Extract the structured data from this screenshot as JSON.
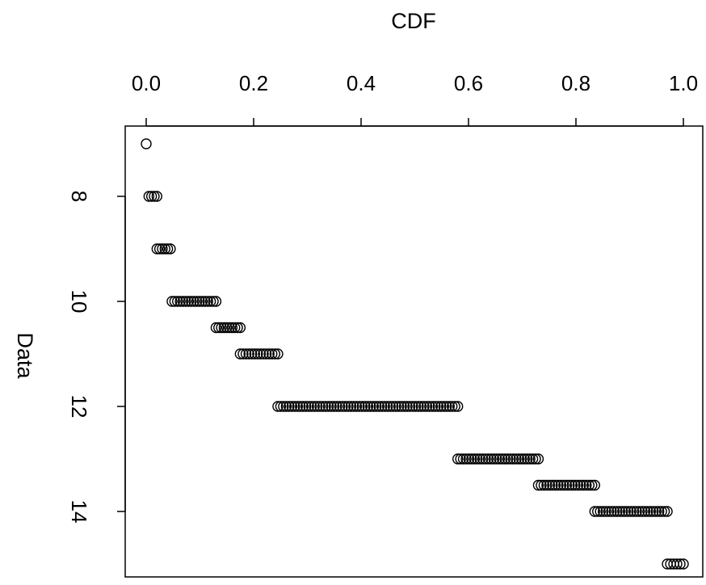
{
  "chart_data": {
    "type": "scatter",
    "title": "",
    "xlabel": "CDF",
    "ylabel": "Data",
    "x_axis_position": "top",
    "y_axis_reversed": true,
    "xlim": [
      0,
      1
    ],
    "ylim": [
      7,
      15
    ],
    "x_ticks": [
      0.0,
      0.2,
      0.4,
      0.6,
      0.8,
      1.0
    ],
    "x_tick_labels": [
      "0.0",
      "0.2",
      "0.4",
      "0.6",
      "0.8",
      "1.0"
    ],
    "y_ticks": [
      8,
      10,
      12,
      14
    ],
    "y_tick_labels": [
      "8",
      "10",
      "12",
      "14"
    ],
    "grid": false,
    "legend": "none",
    "marker": "open-circle",
    "point_groups": [
      {
        "y": 7.0,
        "cdf_start": 0.0,
        "cdf_end": 0.0,
        "count": 1
      },
      {
        "y": 8.0,
        "cdf_start": 0.005,
        "cdf_end": 0.02,
        "count": 4
      },
      {
        "y": 9.0,
        "cdf_start": 0.02,
        "cdf_end": 0.045,
        "count": 6
      },
      {
        "y": 10.0,
        "cdf_start": 0.048,
        "cdf_end": 0.13,
        "count": 17
      },
      {
        "y": 10.5,
        "cdf_start": 0.13,
        "cdf_end": 0.175,
        "count": 10
      },
      {
        "y": 11.0,
        "cdf_start": 0.175,
        "cdf_end": 0.245,
        "count": 14
      },
      {
        "y": 12.0,
        "cdf_start": 0.245,
        "cdf_end": 0.58,
        "count": 65
      },
      {
        "y": 13.0,
        "cdf_start": 0.58,
        "cdf_end": 0.73,
        "count": 30
      },
      {
        "y": 13.5,
        "cdf_start": 0.73,
        "cdf_end": 0.835,
        "count": 21
      },
      {
        "y": 14.0,
        "cdf_start": 0.835,
        "cdf_end": 0.97,
        "count": 27
      },
      {
        "y": 15.0,
        "cdf_start": 0.97,
        "cdf_end": 1.0,
        "count": 6
      }
    ]
  }
}
